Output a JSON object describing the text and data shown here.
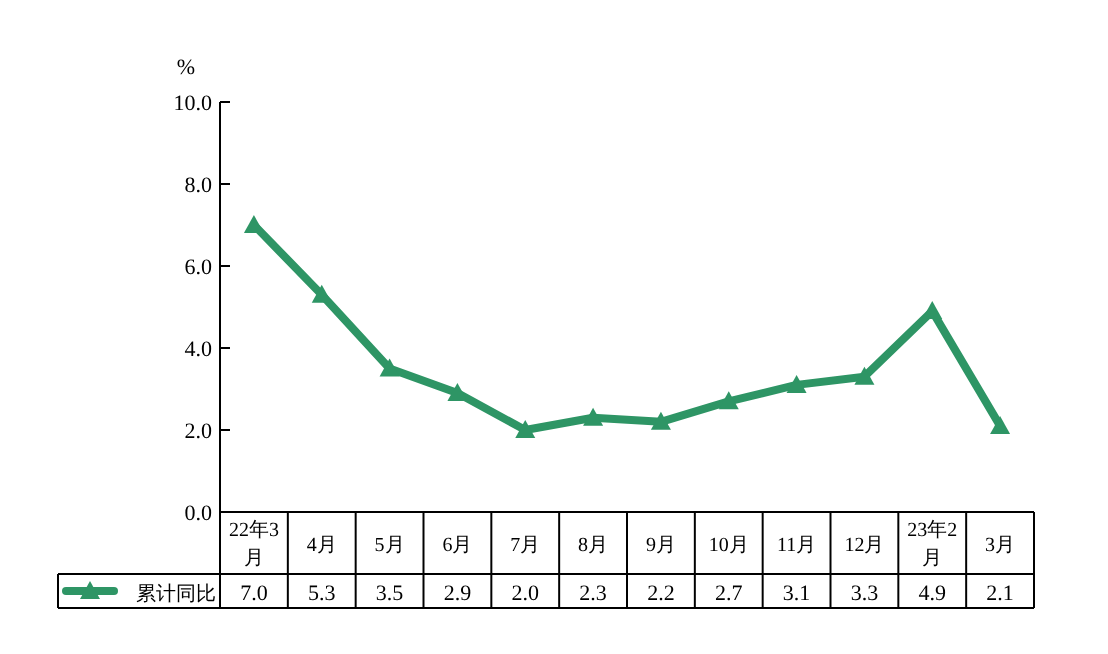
{
  "chart_data": {
    "type": "line",
    "ylabel": "%",
    "categories": [
      "22年3月",
      "4月",
      "5月",
      "6月",
      "7月",
      "8月",
      "9月",
      "10月",
      "11月",
      "12月",
      "23年2月",
      "3月"
    ],
    "series": [
      {
        "name": "累计同比",
        "color": "#2e9565",
        "values": [
          7.0,
          5.3,
          3.5,
          2.9,
          2.0,
          2.3,
          2.2,
          2.7,
          3.1,
          3.3,
          4.9,
          2.1
        ],
        "value_labels": [
          "7.0",
          "5.3",
          "3.5",
          "2.9",
          "2.0",
          "2.3",
          "2.2",
          "2.7",
          "3.1",
          "3.3",
          "4.9",
          "2.1"
        ]
      }
    ],
    "ylim": [
      0,
      10
    ],
    "yticks": [
      {
        "value": 0,
        "label": "0.0"
      },
      {
        "value": 2,
        "label": "2.0"
      },
      {
        "value": 4,
        "label": "4.0"
      },
      {
        "value": 6,
        "label": "6.0"
      },
      {
        "value": 8,
        "label": "8.0"
      },
      {
        "value": 10,
        "label": "10.0"
      }
    ],
    "legend": "bottom",
    "marker": "triangle",
    "line_style": "solid",
    "grid": false
  }
}
